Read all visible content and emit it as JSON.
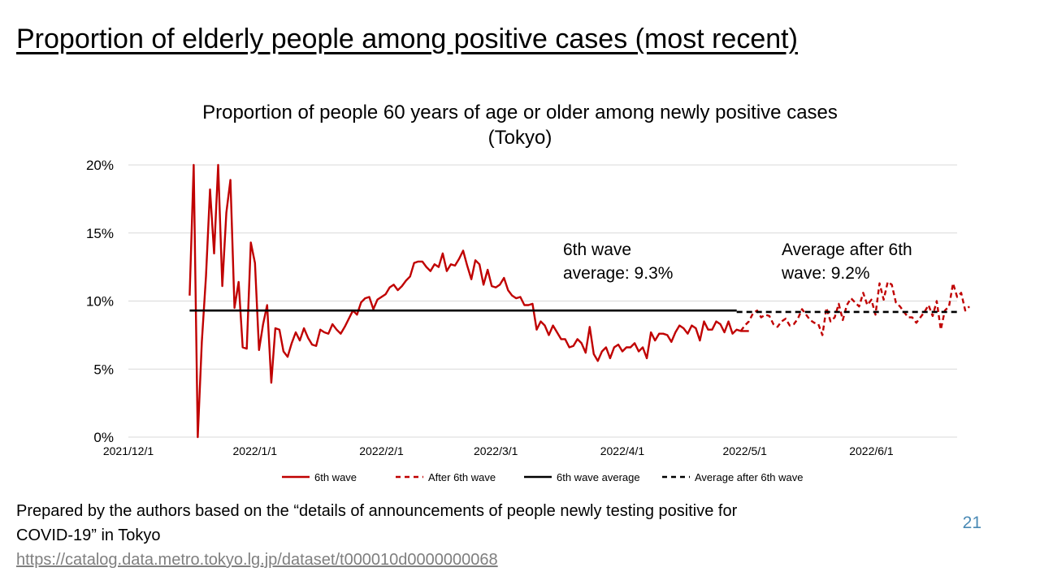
{
  "slide": {
    "title": "Proportion of elderly people among positive cases (most recent)",
    "source_line1": "Prepared by the authors based on the “details of announcements of people newly testing positive for",
    "source_line2": "COVID-19” in Tokyo",
    "source_url": "https://catalog.data.metro.tokyo.lg.jp/dataset/t000010d0000000068",
    "page_number": "21"
  },
  "chart_data": {
    "type": "line",
    "title_line1": "Proportion of people 60 years of age or older among newly positive cases",
    "title_line2": "(Tokyo)",
    "ylim": [
      0,
      20
    ],
    "yticks": [
      "0%",
      "5%",
      "10%",
      "15%",
      "20%"
    ],
    "xlim": [
      "2021-12-01",
      "2022-06-22"
    ],
    "xticks": [
      {
        "date": "2021-12-01",
        "label": "2021/12/1"
      },
      {
        "date": "2022-01-01",
        "label": "2022/1/1"
      },
      {
        "date": "2022-02-01",
        "label": "2022/2/1"
      },
      {
        "date": "2022-03-01",
        "label": "2022/3/1"
      },
      {
        "date": "2022-04-01",
        "label": "2022/4/1"
      },
      {
        "date": "2022-05-01",
        "label": "2022/5/1"
      },
      {
        "date": "2022-06-01",
        "label": "2022/6/1"
      }
    ],
    "grid": true,
    "legend_position": "bottom",
    "colors": {
      "wave6": "#c00000",
      "average": "#000000",
      "grid": "#d9d9d9"
    },
    "annotations": {
      "wave6_average": [
        "6th wave",
        "average: 9.3%"
      ],
      "after_average": [
        "Average after 6th",
        "wave: 9.2%"
      ]
    },
    "series": [
      {
        "name": "6th wave",
        "style": "solid",
        "start_date": "2021-12-16",
        "values": [
          10.4,
          20.0,
          0.0,
          7.0,
          11.8,
          18.2,
          13.5,
          20.0,
          11.1,
          16.5,
          18.9,
          9.5,
          11.4,
          6.6,
          6.5,
          14.3,
          12.8,
          6.4,
          8.3,
          9.7,
          4.0,
          8.0,
          7.9,
          6.3,
          5.9,
          6.9,
          7.7,
          7.1,
          8.0,
          7.3,
          6.8,
          6.7,
          7.9,
          7.7,
          7.6,
          8.3,
          7.9,
          7.6,
          8.1,
          8.7,
          9.3,
          9.0,
          9.9,
          10.2,
          10.3,
          9.4,
          10.1,
          10.3,
          10.5,
          11.0,
          11.2,
          10.8,
          11.1,
          11.5,
          11.8,
          12.8,
          12.9,
          12.9,
          12.5,
          12.2,
          12.7,
          12.5,
          13.5,
          12.2,
          12.7,
          12.6,
          13.1,
          13.7,
          12.6,
          11.6,
          13.0,
          12.7,
          11.2,
          12.3,
          11.1,
          11.0,
          11.2,
          11.7,
          10.8,
          10.4,
          10.2,
          10.3,
          9.7,
          9.7,
          9.8,
          7.9,
          8.5,
          8.2,
          7.5,
          8.2,
          7.7,
          7.2,
          7.2,
          6.6,
          6.7,
          7.2,
          6.9,
          6.2,
          8.1,
          6.1,
          5.6,
          6.3,
          6.6,
          5.8,
          6.6,
          6.8,
          6.3,
          6.6,
          6.6,
          6.9,
          6.3,
          6.6,
          5.8,
          7.7,
          7.1,
          7.6,
          7.6,
          7.5,
          7.0,
          7.7,
          8.2,
          8.0,
          7.6,
          8.2,
          8.0,
          7.1,
          8.5,
          7.9,
          7.9,
          8.5,
          8.3,
          7.7,
          8.5,
          7.6,
          7.9,
          7.8,
          7.8,
          7.8
        ]
      },
      {
        "name": "After 6th wave",
        "style": "dashed",
        "start_date": "2022-04-30",
        "values": [
          7.8,
          8.2,
          8.5,
          9.1,
          9.3,
          8.8,
          9.0,
          8.9,
          8.3,
          8.1,
          8.5,
          8.7,
          8.2,
          8.3,
          8.7,
          9.4,
          9.0,
          8.6,
          8.4,
          8.3,
          7.5,
          9.5,
          8.5,
          8.8,
          9.8,
          8.6,
          9.7,
          10.2,
          9.9,
          9.6,
          10.6,
          9.7,
          10.1,
          9.0,
          11.3,
          10.1,
          11.4,
          11.2,
          9.9,
          9.6,
          9.2,
          8.8,
          8.8,
          8.4,
          8.8,
          9.2,
          9.7,
          8.9,
          10.0,
          7.9,
          9.3,
          9.6,
          11.3,
          10.3,
          10.6,
          9.3,
          9.6
        ]
      },
      {
        "name": "6th wave average",
        "style": "solid",
        "value": 9.3,
        "range": [
          "2021-12-16",
          "2022-04-29"
        ]
      },
      {
        "name": "Average after 6th wave",
        "style": "dashed",
        "value": 9.2,
        "range": [
          "2022-04-29",
          "2022-06-22"
        ]
      }
    ]
  }
}
